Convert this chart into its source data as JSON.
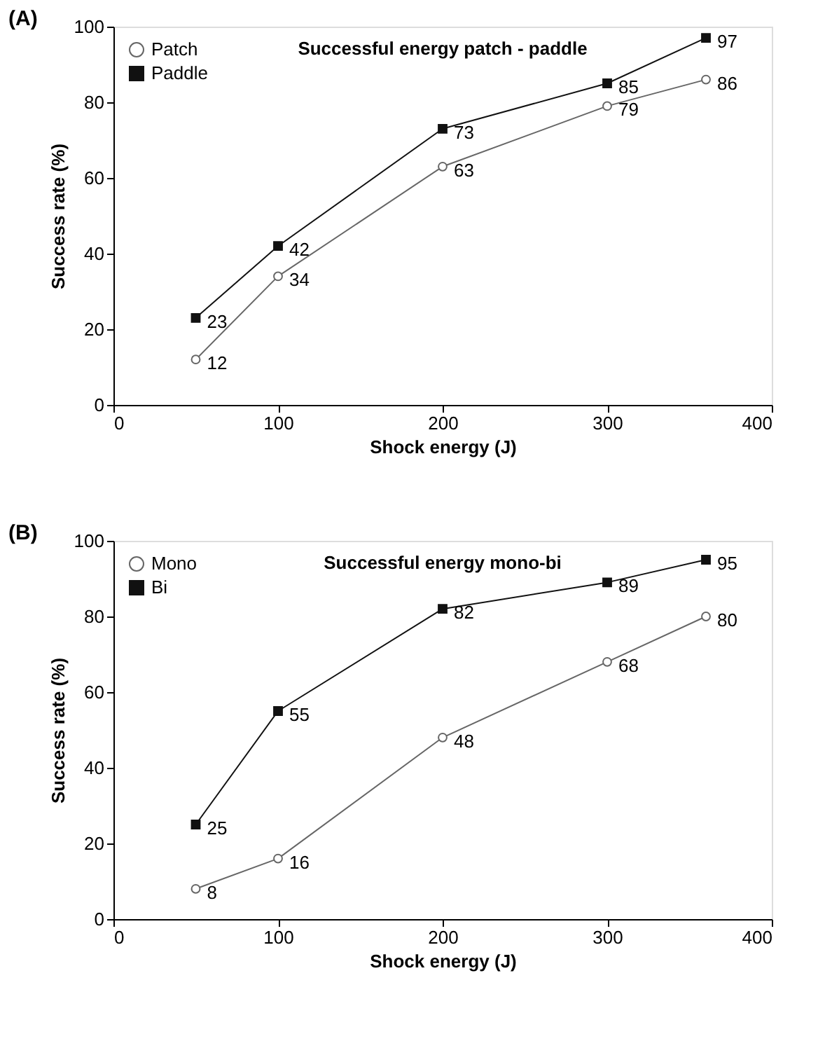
{
  "chart_data": [
    {
      "type": "line",
      "title": "Successful energy patch - paddle",
      "xlabel": "Shock energy (J)",
      "ylabel": "Success rate (%)",
      "annotations": [
        "(A)"
      ],
      "x": [
        50,
        100,
        200,
        300,
        360
      ],
      "series": [
        {
          "name": "Patch",
          "color": "#666666",
          "marker": "circle",
          "values": [
            12,
            34,
            63,
            79,
            86
          ]
        },
        {
          "name": "Paddle",
          "color": "#111111",
          "marker": "square",
          "values": [
            23,
            42,
            73,
            85,
            97
          ]
        }
      ],
      "xlim": [
        0,
        400
      ],
      "xticks": [
        0,
        100,
        200,
        300,
        400
      ],
      "ylim": [
        0,
        100
      ],
      "yticks": [
        0,
        20,
        40,
        60,
        80,
        100
      ],
      "grid": false,
      "legend": "top left",
      "data_labels": true,
      "line_style": "solid"
    },
    {
      "type": "line",
      "title": "Successful energy mono-bi",
      "xlabel": "Shock energy (J)",
      "ylabel": "Success rate (%)",
      "annotations": [
        "(B)"
      ],
      "x": [
        50,
        100,
        200,
        300,
        360
      ],
      "series": [
        {
          "name": "Mono",
          "color": "#666666",
          "marker": "circle",
          "values": [
            8,
            16,
            48,
            68,
            80
          ]
        },
        {
          "name": "Bi",
          "color": "#111111",
          "marker": "square",
          "values": [
            25,
            55,
            82,
            89,
            95
          ]
        }
      ],
      "xlim": [
        0,
        400
      ],
      "xticks": [
        0,
        100,
        200,
        300,
        400
      ],
      "ylim": [
        0,
        100
      ],
      "yticks": [
        0,
        20,
        40,
        60,
        80,
        100
      ],
      "grid": false,
      "legend": "top left",
      "data_labels": true,
      "line_style": "solid"
    }
  ]
}
